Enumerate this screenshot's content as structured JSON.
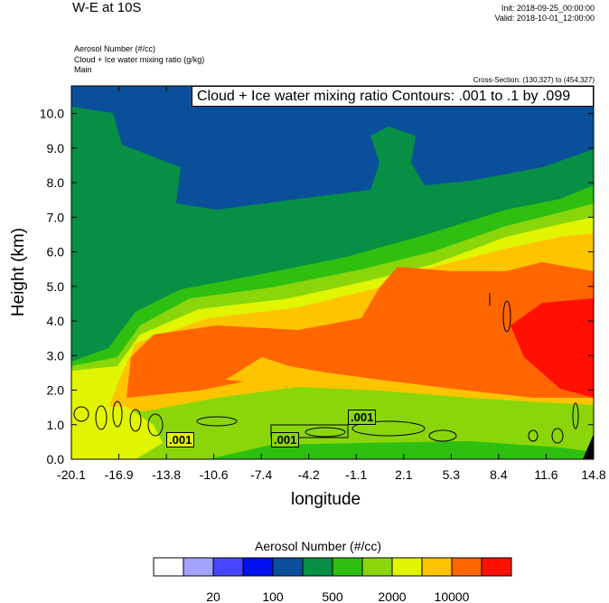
{
  "header": {
    "title": "W-E at 10S",
    "init": "Init: 2018-09-25_00:00:00",
    "valid": "Valid: 2018-10-01_12:00:00",
    "fields": [
      "Aerosol Number   (#/cc)",
      "Cloud + Ice water mixing ratio   (g/kg)",
      "Main"
    ],
    "cross_section": "Cross-Section: (130,327) to (454,327)"
  },
  "chart_data": {
    "type": "heatmap",
    "title": "W-E at 10S",
    "xlabel": "longitude",
    "ylabel": "Height (km)",
    "xlim": [
      -20.1,
      14.8
    ],
    "ylim": [
      0,
      10.8
    ],
    "xticks": [
      "-20.1",
      "-16.9",
      "-13.8",
      "-10.6",
      "-7.4",
      "-4.2",
      "-1.1",
      "2.1",
      "5.3",
      "8.4",
      "11.6",
      "14.8"
    ],
    "yticks": [
      "0.0",
      "1.0",
      "2.0",
      "3.0",
      "4.0",
      "5.0",
      "6.0",
      "7.0",
      "8.0",
      "9.0",
      "10.0"
    ],
    "yticks_values": [
      0,
      1,
      2,
      3,
      4,
      5,
      6,
      7,
      8,
      9,
      10
    ],
    "contour_info": "Cloud + Ice water mixing ratio Contours: .001 to .1 by .099",
    "contour_labels": [
      ".001",
      ".001",
      ".001"
    ],
    "colorbar": {
      "title": "Aerosol Number  (#/cc)",
      "colors": [
        "#ffffff",
        "#a4a4ff",
        "#4646ff",
        "#0010f0",
        "#0a4f9a",
        "#068f45",
        "#2fbf10",
        "#8ad60a",
        "#e1f500",
        "#ffc400",
        "#ff6600",
        "#ff1000"
      ],
      "labels": [
        "20",
        "100",
        "500",
        "2000",
        "10000"
      ]
    }
  }
}
